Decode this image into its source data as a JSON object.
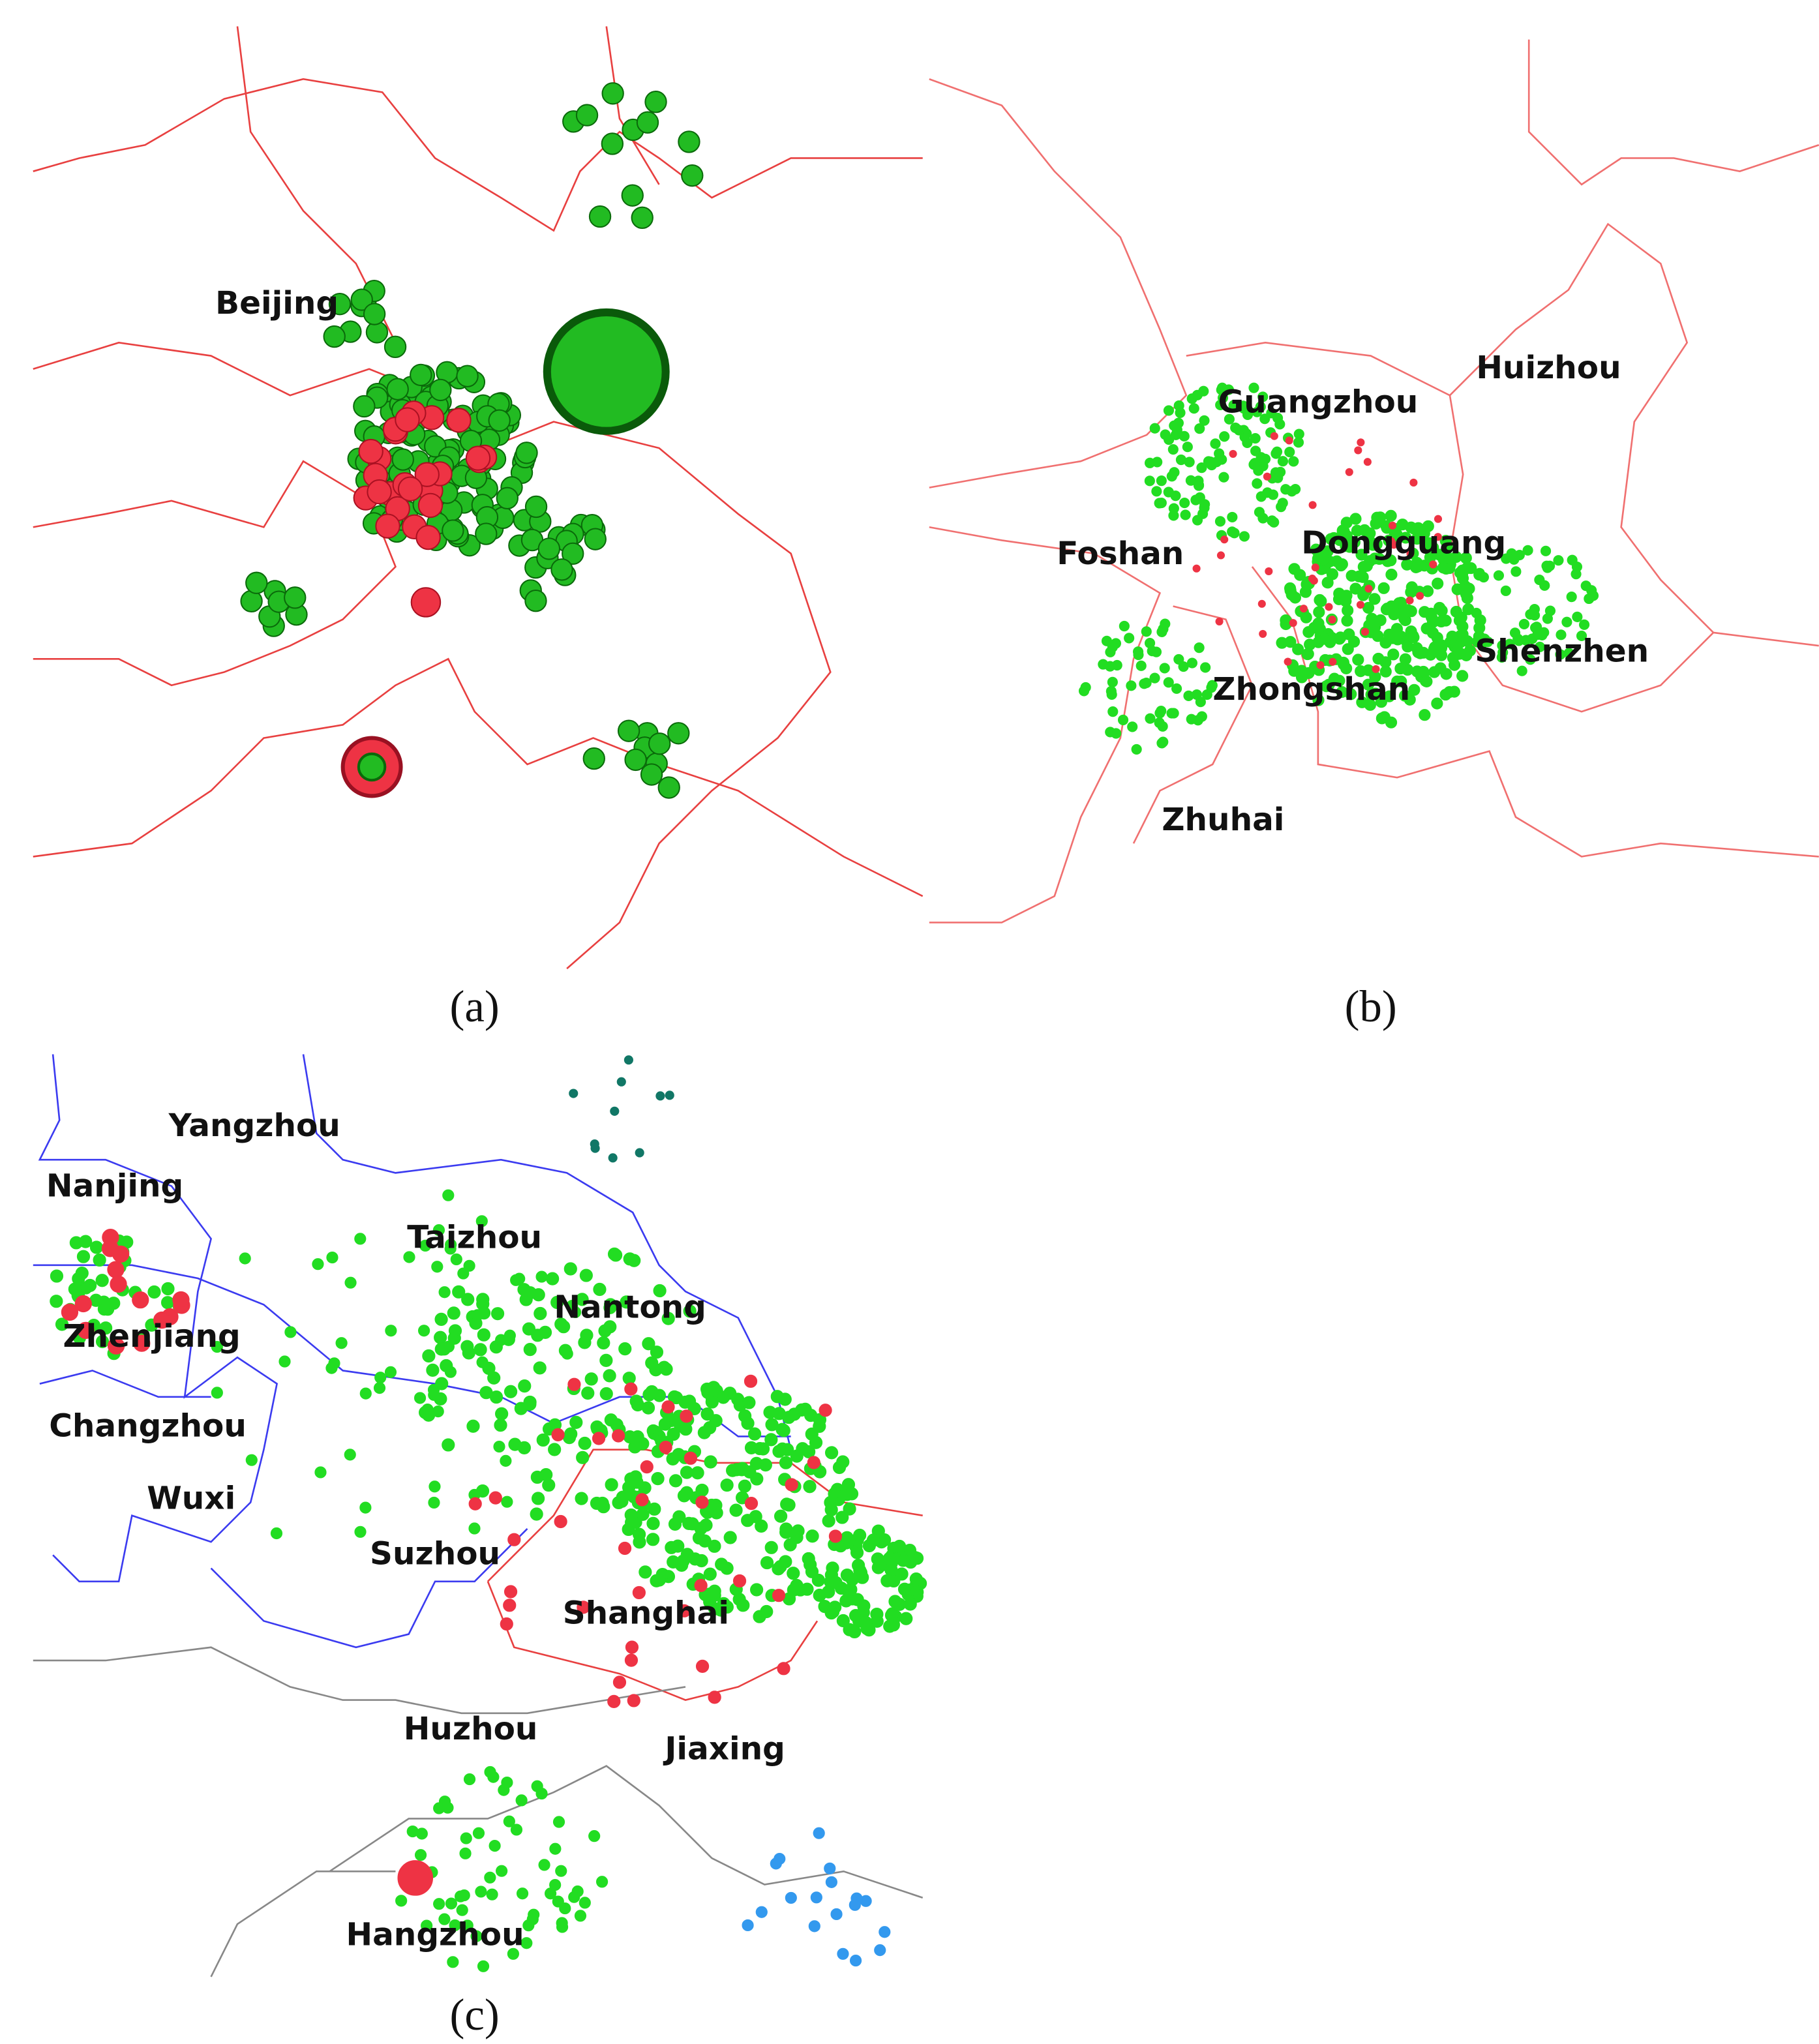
{
  "panels": [
    {
      "label": "(a)",
      "places": [
        "Beijing"
      ]
    },
    {
      "label": "(b)",
      "places": [
        "Guangzhou",
        "Huizhou",
        "Foshan",
        "Dongguang",
        "Shenzhen",
        "Zhongshan",
        "Zhuhai"
      ]
    },
    {
      "label": "(c)",
      "places": [
        "Yangzhou",
        "Nanjing",
        "Taizhou",
        "Nantong",
        "Zhenjiang",
        "Changzhou",
        "Wuxi",
        "Suzhou",
        "Shanghai",
        "Huzhou",
        "Jiaxing",
        "Hangzhou"
      ]
    }
  ]
}
